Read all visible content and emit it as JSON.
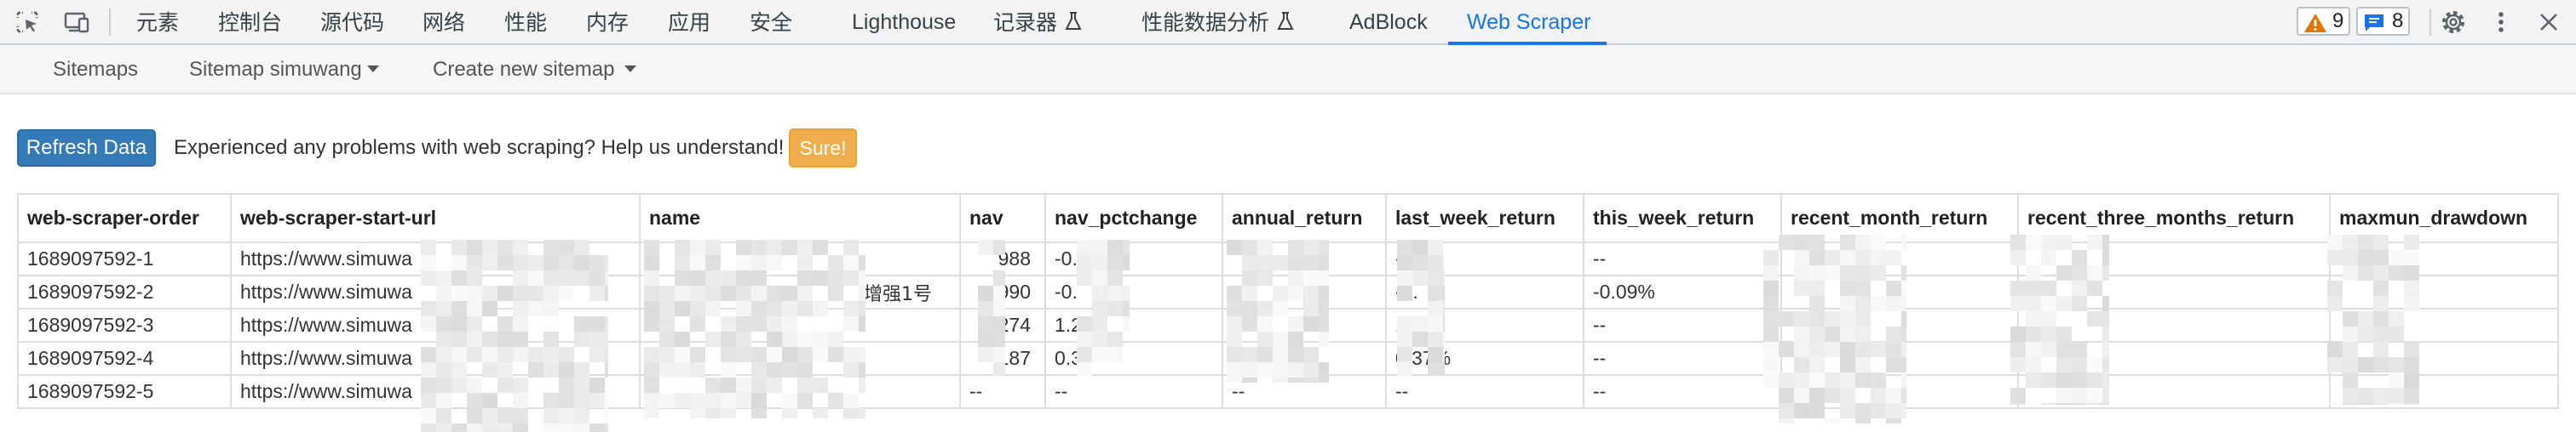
{
  "devtools": {
    "tabs": [
      {
        "label": "元素"
      },
      {
        "label": "控制台"
      },
      {
        "label": "源代码"
      },
      {
        "label": "网络"
      },
      {
        "label": "性能"
      },
      {
        "label": "内存"
      },
      {
        "label": "应用"
      },
      {
        "label": "安全"
      },
      {
        "label": "Lighthouse"
      },
      {
        "label": "记录器"
      },
      {
        "label": "性能数据分析"
      },
      {
        "label": "AdBlock"
      },
      {
        "label": "Web Scraper"
      }
    ],
    "active_tab": "Web Scraper",
    "warnings_count": "9",
    "messages_count": "8",
    "icons": [
      "inspect-element-icon",
      "device-toolbar-icon",
      "flask-icon",
      "warning-icon",
      "message-icon",
      "gear-icon",
      "more-vertical-icon",
      "close-icon"
    ],
    "accent_color": "#1a73e8"
  },
  "scraper_nav": {
    "sitemaps": "Sitemaps",
    "sitemap_current": "Sitemap simuwang",
    "create_new": "Create new sitemap"
  },
  "toolbar": {
    "refresh_label": "Refresh Data",
    "help_text": "Experienced any problems with web scraping? Help us understand!",
    "sure_label": "Sure!"
  },
  "table": {
    "columns": [
      "web-scraper-order",
      "web-scraper-start-url",
      "name",
      "nav",
      "nav_pctchange",
      "annual_return",
      "last_week_return",
      "this_week_return",
      "recent_month_return",
      "recent_three_months_return",
      "maxmun_drawdown"
    ],
    "rows": [
      [
        "1689097592-1",
        "https://www.simuwa",
        "",
        "988",
        "-0.",
        "",
        "-0.",
        "--",
        "",
        "",
        ""
      ],
      [
        "1689097592-2",
        "https://www.simuwa",
        "增强1号",
        "990",
        "-0.",
        "",
        "-0.",
        "-0.09%",
        "",
        "",
        ""
      ],
      [
        "1689097592-3",
        "https://www.simuwa",
        "",
        "274",
        "1.2",
        "",
        "1.2",
        "--",
        "",
        "",
        ""
      ],
      [
        "1689097592-4",
        "https://www.simuwa",
        "",
        "187",
        "0.3",
        "",
        "0.37%",
        "--",
        "",
        "",
        ""
      ],
      [
        "1689097592-5",
        "https://www.simuwa",
        "",
        "--",
        "--",
        "--",
        "--",
        "--",
        "",
        "",
        ""
      ]
    ]
  }
}
